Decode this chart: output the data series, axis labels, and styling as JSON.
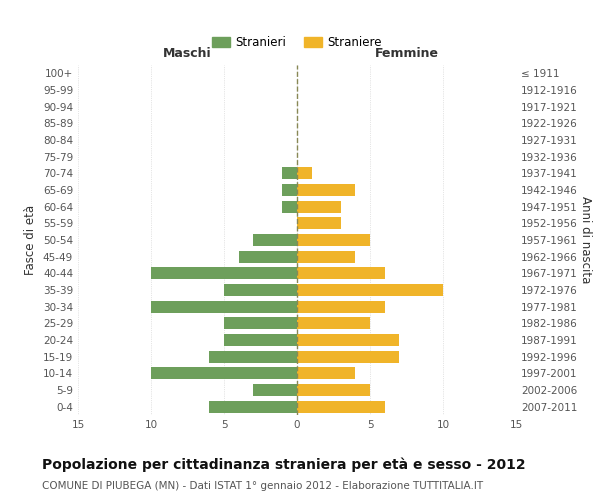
{
  "age_groups": [
    "100+",
    "95-99",
    "90-94",
    "85-89",
    "80-84",
    "75-79",
    "70-74",
    "65-69",
    "60-64",
    "55-59",
    "50-54",
    "45-49",
    "40-44",
    "35-39",
    "30-34",
    "25-29",
    "20-24",
    "15-19",
    "10-14",
    "5-9",
    "0-4"
  ],
  "birth_years": [
    "≤ 1911",
    "1912-1916",
    "1917-1921",
    "1922-1926",
    "1927-1931",
    "1932-1936",
    "1937-1941",
    "1942-1946",
    "1947-1951",
    "1952-1956",
    "1957-1961",
    "1962-1966",
    "1967-1971",
    "1972-1976",
    "1977-1981",
    "1982-1986",
    "1987-1991",
    "1992-1996",
    "1997-2001",
    "2002-2006",
    "2007-2011"
  ],
  "males": [
    0,
    0,
    0,
    0,
    0,
    0,
    1,
    1,
    1,
    0,
    3,
    4,
    10,
    5,
    10,
    5,
    5,
    6,
    10,
    3,
    6
  ],
  "females": [
    0,
    0,
    0,
    0,
    0,
    0,
    1,
    4,
    3,
    3,
    5,
    4,
    6,
    10,
    6,
    5,
    7,
    7,
    4,
    5,
    6
  ],
  "male_color": "#6d9f5b",
  "female_color": "#f0b429",
  "xlim": 15,
  "title": "Popolazione per cittadinanza straniera per età e sesso - 2012",
  "subtitle": "COMUNE DI PIUBEGA (MN) - Dati ISTAT 1° gennaio 2012 - Elaborazione TUTTITALIA.IT",
  "xlabel_left": "Maschi",
  "xlabel_right": "Femmine",
  "ylabel_left": "Fasce di età",
  "ylabel_right": "Anni di nascita",
  "legend_male": "Stranieri",
  "legend_female": "Straniere",
  "background_color": "#ffffff",
  "grid_color": "#cccccc",
  "center_line_color": "#888855",
  "tick_label_color": "#555555",
  "title_fontsize": 10,
  "subtitle_fontsize": 7.5,
  "axis_label_fontsize": 8.5,
  "tick_fontsize": 7.5
}
